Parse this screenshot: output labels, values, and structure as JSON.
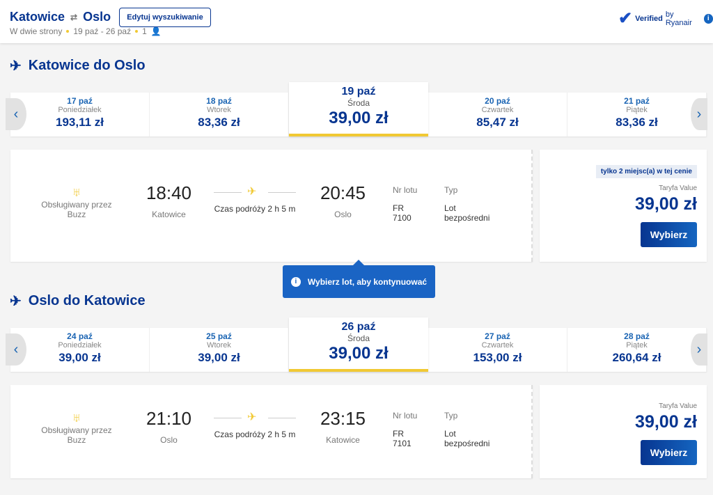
{
  "header": {
    "origin": "Katowice",
    "destination": "Oslo",
    "trip_type": "W dwie strony",
    "dates": "19 paź - 26 paź",
    "passengers": "1",
    "edit_label": "Edytuj wyszukiwanie",
    "verified_bold": "Verified",
    "verified_rest": "by Ryanair"
  },
  "outbound": {
    "title": "Katowice do Oslo",
    "dates": [
      {
        "date": "17 paź",
        "day": "Poniedziałek",
        "price": "193,11 zł"
      },
      {
        "date": "18 paź",
        "day": "Wtorek",
        "price": "83,36 zł"
      },
      {
        "date": "19 paź",
        "day": "Środa",
        "price": "39,00 zł"
      },
      {
        "date": "20 paź",
        "day": "Czwartek",
        "price": "85,47 zł"
      },
      {
        "date": "21 paź",
        "day": "Piątek",
        "price": "83,36 zł"
      }
    ],
    "flight": {
      "operated": "Obsługiwany przez Buzz",
      "dep_time": "18:40",
      "dep_city": "Katowice",
      "duration": "Czas podróży 2 h 5 m",
      "arr_time": "20:45",
      "arr_city": "Oslo",
      "flight_no_label": "Nr lotu",
      "flight_no": "FR 7100",
      "type_label": "Typ",
      "type": "Lot bezpośredni",
      "badge": "tylko 2 miejsc(a) w tej cenie",
      "fare_label": "Taryfa Value",
      "price": "39,00 zł",
      "select": "Wybierz"
    }
  },
  "tooltip": "Wybierz lot, aby kontynuować",
  "inbound": {
    "title": "Oslo do Katowice",
    "dates": [
      {
        "date": "24 paź",
        "day": "Poniedziałek",
        "price": "39,00 zł"
      },
      {
        "date": "25 paź",
        "day": "Wtorek",
        "price": "39,00 zł"
      },
      {
        "date": "26 paź",
        "day": "Środa",
        "price": "39,00 zł"
      },
      {
        "date": "27 paź",
        "day": "Czwartek",
        "price": "153,00 zł"
      },
      {
        "date": "28 paź",
        "day": "Piątek",
        "price": "260,64 zł"
      }
    ],
    "flight": {
      "operated": "Obsługiwany przez Buzz",
      "dep_time": "21:10",
      "dep_city": "Oslo",
      "duration": "Czas podróży 2 h 5 m",
      "arr_time": "23:15",
      "arr_city": "Katowice",
      "flight_no_label": "Nr lotu",
      "flight_no": "FR 7101",
      "type_label": "Typ",
      "type": "Lot bezpośredni",
      "fare_label": "Taryfa Value",
      "price": "39,00 zł",
      "select": "Wybierz"
    }
  }
}
